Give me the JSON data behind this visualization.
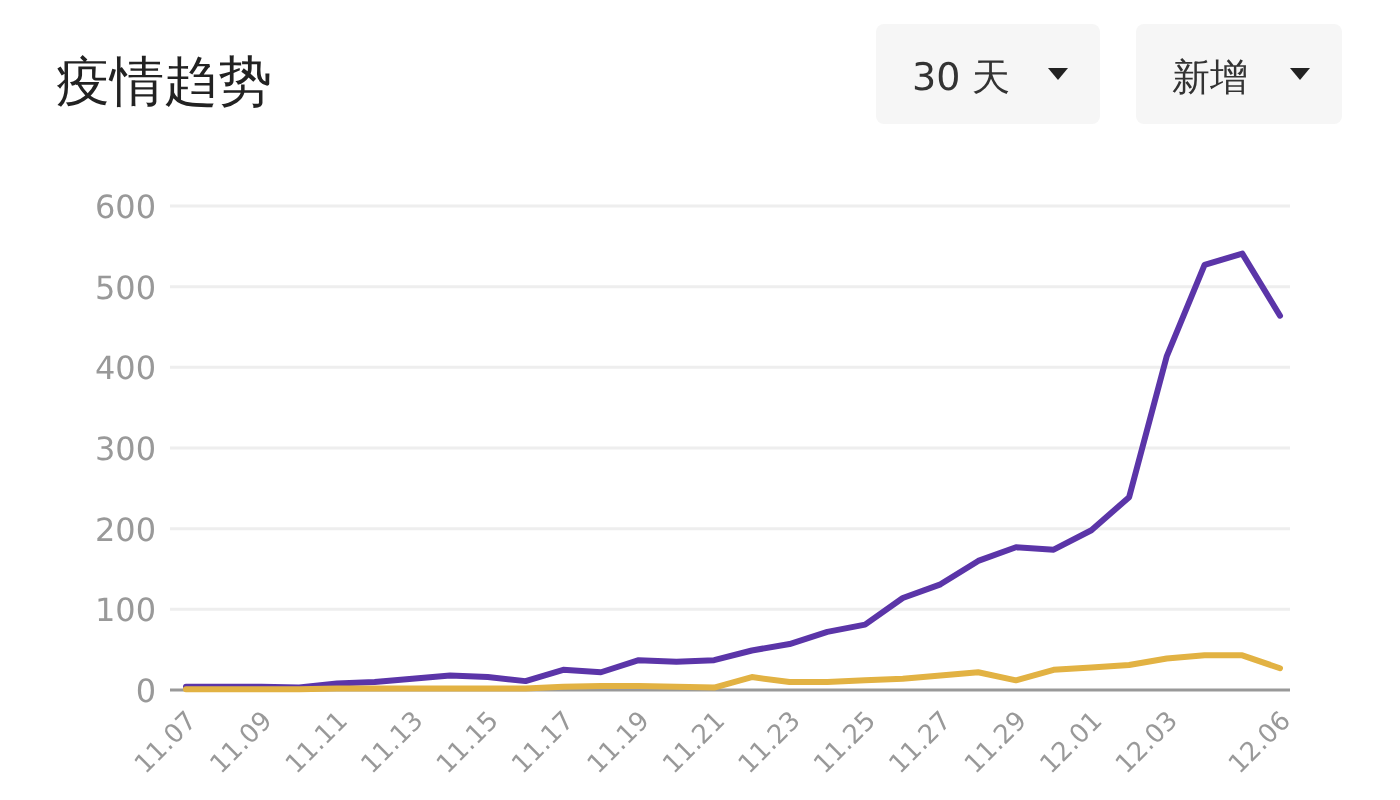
{
  "chart_data": {
    "type": "line",
    "title": "疫情趋势",
    "annotations": [
      "30 天",
      "新增"
    ],
    "categories": [
      "11.07",
      null,
      "11.09",
      null,
      "11.11",
      null,
      "11.13",
      null,
      "11.15",
      null,
      "11.17",
      null,
      "11.19",
      null,
      "11.21",
      null,
      "11.23",
      null,
      "11.25",
      null,
      "11.27",
      null,
      "11.29",
      null,
      "12.01",
      null,
      "12.03",
      null,
      null,
      "12.06"
    ],
    "series": [
      {
        "color": "#5b35a8",
        "values": [
          4,
          4,
          4,
          3,
          8,
          10,
          14,
          18,
          16,
          11,
          25,
          22,
          37,
          35,
          37,
          49,
          57,
          72,
          81,
          114,
          131,
          160,
          177,
          174,
          198,
          239,
          414,
          527,
          541,
          464
        ]
      },
      {
        "color": "#e2b243",
        "values": [
          1,
          1,
          1,
          1,
          2,
          2,
          2,
          2,
          2,
          2,
          4,
          5,
          5,
          4,
          3,
          16,
          10,
          10,
          12,
          14,
          18,
          22,
          12,
          25,
          28,
          31,
          39,
          43,
          43,
          27
        ]
      }
    ],
    "ylim": [
      0,
      600
    ],
    "yticks": [
      0,
      100,
      200,
      300,
      400,
      500,
      600
    ],
    "grid": "y",
    "marker": "none",
    "line_style": "solid"
  }
}
